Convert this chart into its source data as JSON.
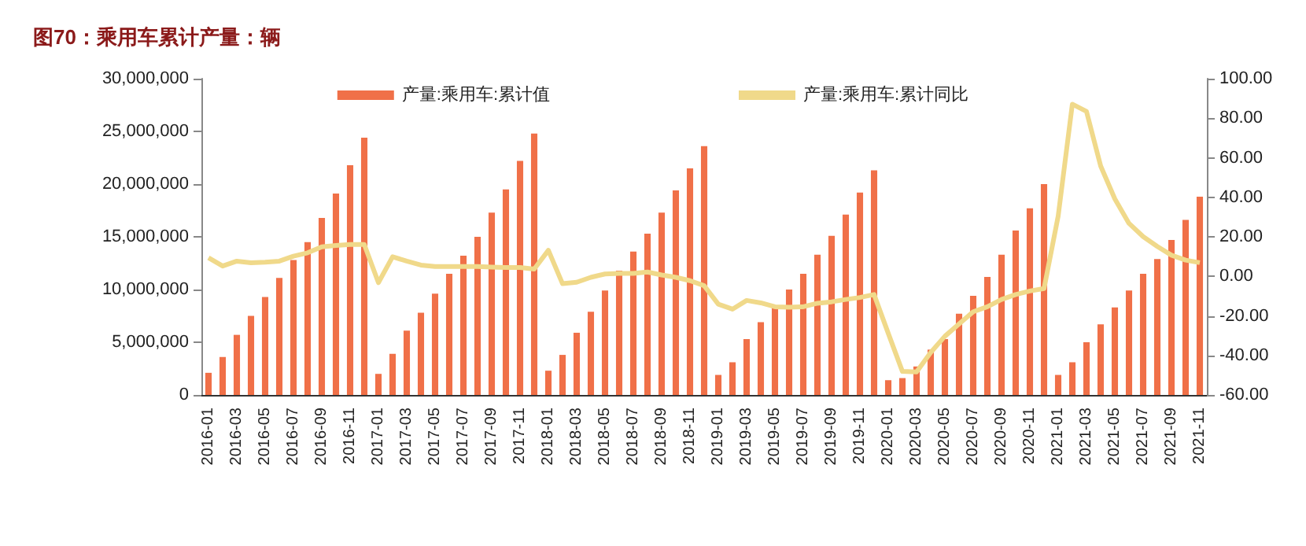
{
  "chart_data": {
    "type": "bar",
    "title": "图70：乘用车累计产量：辆",
    "categories": [
      "2016-01",
      null,
      "2016-03",
      null,
      "2016-05",
      null,
      "2016-07",
      null,
      "2016-09",
      null,
      "2016-11",
      null,
      "2017-01",
      null,
      "2017-03",
      null,
      "2017-05",
      null,
      "2017-07",
      null,
      "2017-09",
      null,
      "2017-11",
      null,
      "2018-01",
      null,
      "2018-03",
      null,
      "2018-05",
      null,
      "2018-07",
      null,
      "2018-09",
      null,
      "2018-11",
      null,
      "2019-01",
      null,
      "2019-03",
      null,
      "2019-05",
      null,
      "2019-07",
      null,
      "2019-09",
      null,
      "2019-11",
      null,
      "2020-01",
      null,
      "2020-03",
      null,
      "2020-05",
      null,
      "2020-07",
      null,
      "2020-09",
      null,
      "2020-11",
      null,
      "2021-01",
      null,
      "2021-03",
      null,
      "2021-05",
      null,
      "2021-07",
      null,
      "2021-09",
      null,
      "2021-11"
    ],
    "series": [
      {
        "name": "产量:乘用车:累计值",
        "color": "#f07048",
        "values": [
          2100000,
          3600000,
          5700000,
          7500000,
          9300000,
          11100000,
          12800000,
          14500000,
          16800000,
          19100000,
          21800000,
          24400000,
          2000000,
          3900000,
          6100000,
          7800000,
          9600000,
          11500000,
          13200000,
          15000000,
          17300000,
          19500000,
          22200000,
          24800000,
          2300000,
          3800000,
          5900000,
          7900000,
          9900000,
          11800000,
          13600000,
          15300000,
          17300000,
          19400000,
          21500000,
          23600000,
          1900000,
          3100000,
          5300000,
          6900000,
          8400000,
          10000000,
          11500000,
          13300000,
          15100000,
          17100000,
          19200000,
          21300000,
          1400000,
          1600000,
          2700000,
          4300000,
          5300000,
          7700000,
          9400000,
          11200000,
          13300000,
          15600000,
          17700000,
          20000000,
          1900000,
          3100000,
          5000000,
          6700000,
          8300000,
          9900000,
          11500000,
          12900000,
          14700000,
          16600000,
          18800000
        ]
      },
      {
        "name": "产量:乘用车:累计同比",
        "type": "line",
        "axis": "y2",
        "color": "#f0d98a",
        "values": [
          9.4,
          5.2,
          7.7,
          6.9,
          7.2,
          7.7,
          10.2,
          11.9,
          14.9,
          15.6,
          16.1,
          16.1,
          -3.2,
          9.9,
          7.7,
          5.7,
          5.0,
          5.0,
          5.0,
          5.0,
          4.7,
          4.5,
          4.5,
          3.7,
          13.2,
          -3.7,
          -3.0,
          -0.5,
          1.2,
          1.5,
          1.5,
          2.2,
          0.7,
          -0.5,
          -2.2,
          -4.7,
          -14.1,
          -16.6,
          -12.2,
          -13.4,
          -15.4,
          -15.6,
          -15.4,
          -13.6,
          -12.9,
          -11.7,
          -10.7,
          -9.2,
          -28.8,
          -48.1,
          -48.4,
          -38.5,
          -30.3,
          -24.1,
          -17.9,
          -15.4,
          -11.7,
          -9.2,
          -7.4,
          -6.2,
          30.5,
          87.1,
          83.4,
          55.8,
          39.2,
          26.8,
          20.1,
          15.1,
          10.7,
          8.2,
          6.9
        ]
      }
    ],
    "ylim": [
      0,
      30000000
    ],
    "yticks": [
      {
        "value": 0,
        "label": "0"
      },
      {
        "value": 5000000,
        "label": "5,000,000"
      },
      {
        "value": 10000000,
        "label": "10,000,000"
      },
      {
        "value": 15000000,
        "label": "15,000,000"
      },
      {
        "value": 20000000,
        "label": "20,000,000"
      },
      {
        "value": 25000000,
        "label": "25,000,000"
      },
      {
        "value": 30000000,
        "label": "30,000,000"
      }
    ],
    "y2lim": [
      -60,
      100
    ],
    "y2ticks": [
      {
        "value": -60,
        "label": "-60.00"
      },
      {
        "value": -40,
        "label": "-40.00"
      },
      {
        "value": -20,
        "label": "-20.00"
      },
      {
        "value": 0,
        "label": "0.00"
      },
      {
        "value": 20,
        "label": "20.00"
      },
      {
        "value": 40,
        "label": "40.00"
      },
      {
        "value": 60,
        "label": "60.00"
      },
      {
        "value": 80,
        "label": "80.00"
      },
      {
        "value": 100,
        "label": "100.00"
      }
    ],
    "legend": "top",
    "grid": false
  }
}
